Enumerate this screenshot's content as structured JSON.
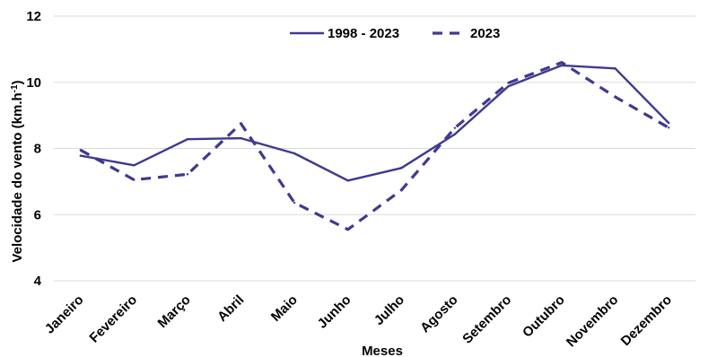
{
  "chart_data": {
    "type": "line",
    "categories": [
      "Janeiro",
      "Fevereiro",
      "Março",
      "Abril",
      "Maio",
      "Junho",
      "Julho",
      "Agosto",
      "Setembro",
      "Outubro",
      "Novembro",
      "Dezembro"
    ],
    "series": [
      {
        "name": "1998 - 2023",
        "style": "solid",
        "color": "#3f3991",
        "values": [
          7.78,
          7.49,
          8.28,
          8.31,
          7.85,
          7.03,
          7.41,
          8.43,
          9.88,
          10.51,
          10.42,
          8.77
        ]
      },
      {
        "name": "2023",
        "style": "dashed",
        "color": "#3f3991",
        "values": [
          7.95,
          7.05,
          7.22,
          8.75,
          6.36,
          5.55,
          6.74,
          8.62,
          9.98,
          10.6,
          9.56,
          8.63
        ]
      }
    ],
    "xlabel": "Meses",
    "ylabel": "Velocidade do vento (km.h",
    "ylabel_sup": "-1",
    "ylabel_close": ")",
    "ylim": [
      4,
      12
    ],
    "yticks": [
      4,
      6,
      8,
      10,
      12
    ],
    "grid": true,
    "legend_position": "top-center"
  }
}
